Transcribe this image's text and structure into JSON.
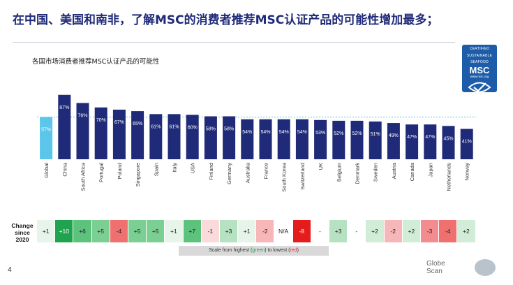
{
  "title": "在中国、美国和南非，了解MSC的消费者推荐MSC认证产品的可能性增加最多；",
  "subtitle": "各国市场消费者推荐MSC认证产品的可能性",
  "logo": {
    "line1": "CERTIFIED",
    "line2": "SUSTAINABLE",
    "line3": "SEAFOOD",
    "name": "MSC",
    "url": "www.msc.org"
  },
  "change_label": [
    "Change",
    "since",
    "2020"
  ],
  "scale_note": {
    "prefix": "Scale from highest (",
    "green": "green",
    "middle": ") to lowest (",
    "red": "red",
    "suffix": ")"
  },
  "page_number": "4",
  "brand": {
    "line1": "Globe",
    "line2": "Scan"
  },
  "colors": {
    "bar": "#1f2a78",
    "global_bar": "#5bc5ea",
    "title": "#1f2a78",
    "reference_line": "#5bc5ea"
  },
  "chart_data": {
    "type": "bar",
    "categories": [
      "Global",
      "China",
      "South Africa",
      "Portugal",
      "Poland",
      "Singapore",
      "Spain",
      "Italy",
      "USA",
      "Finland",
      "Germany",
      "Australia",
      "France",
      "South Korea",
      "Switzerland",
      "UK",
      "Belgium",
      "Denmark",
      "Sweden",
      "Austria",
      "Canada",
      "Japan",
      "Netherlands",
      "Norway"
    ],
    "values": [
      57,
      87,
      76,
      70,
      67,
      65,
      61,
      61,
      60,
      58,
      58,
      54,
      54,
      54,
      54,
      53,
      52,
      52,
      51,
      49,
      47,
      47,
      45,
      41
    ],
    "value_labels": [
      "57%",
      "87%",
      "76%",
      "70%",
      "67%",
      "65%",
      "61%",
      "61%",
      "60%",
      "58%",
      "58%",
      "54%",
      "54%",
      "54%",
      "54%",
      "53%",
      "52%",
      "52%",
      "51%",
      "49%",
      "47%",
      "47%",
      "45%",
      "41%"
    ],
    "reference_line": 57,
    "ylim": [
      0,
      100
    ],
    "change_since_2020": [
      "+1",
      "+10",
      "+6",
      "+5",
      "-4",
      "+5",
      "+5",
      "+1",
      "+7",
      "-1",
      "+3",
      "+1",
      "-2",
      "N/A",
      "-8",
      "-",
      "+3",
      "-",
      "+2",
      "-2",
      "+2",
      "-3",
      "-4",
      "+2"
    ],
    "change_colors": [
      "#e6f4e9",
      "#1fa34f",
      "#5cc27c",
      "#7ccf93",
      "#f07070",
      "#7ccf93",
      "#7ccf93",
      "#e6f4e9",
      "#5cc27c",
      "#fadadb",
      "#b7e2c2",
      "#e6f4e9",
      "#f7b6b8",
      "#ffffff",
      "#e41c1c",
      "#ffffff",
      "#b7e2c2",
      "#ffffff",
      "#d1ecd7",
      "#f7b6b8",
      "#d1ecd7",
      "#f28c8e",
      "#f07070",
      "#d1ecd7"
    ]
  }
}
